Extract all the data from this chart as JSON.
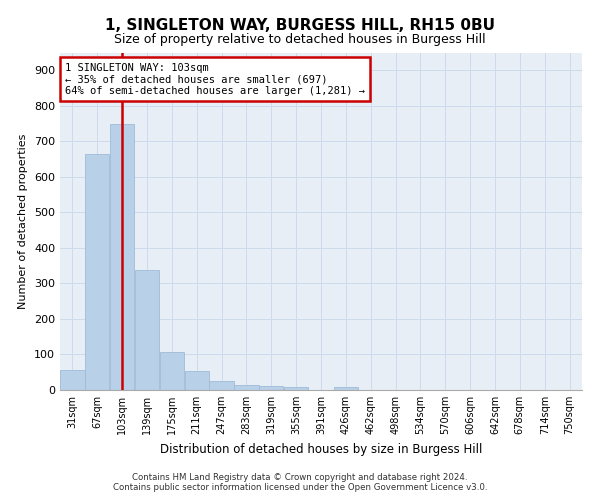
{
  "title_line1": "1, SINGLETON WAY, BURGESS HILL, RH15 0BU",
  "title_line2": "Size of property relative to detached houses in Burgess Hill",
  "xlabel": "Distribution of detached houses by size in Burgess Hill",
  "ylabel": "Number of detached properties",
  "footnote1": "Contains HM Land Registry data © Crown copyright and database right 2024.",
  "footnote2": "Contains public sector information licensed under the Open Government Licence v3.0.",
  "annotation_line1": "1 SINGLETON WAY: 103sqm",
  "annotation_line2": "← 35% of detached houses are smaller (697)",
  "annotation_line3": "64% of semi-detached houses are larger (1,281) →",
  "property_line_x": 2,
  "bar_labels": [
    "31sqm",
    "67sqm",
    "103sqm",
    "139sqm",
    "175sqm",
    "211sqm",
    "247sqm",
    "283sqm",
    "319sqm",
    "355sqm",
    "391sqm",
    "426sqm",
    "462sqm",
    "498sqm",
    "534sqm",
    "570sqm",
    "606sqm",
    "642sqm",
    "678sqm",
    "714sqm",
    "750sqm"
  ],
  "bar_heights": [
    55,
    665,
    750,
    337,
    107,
    53,
    26,
    14,
    12,
    9,
    0,
    9,
    0,
    0,
    0,
    0,
    0,
    0,
    0,
    0,
    0
  ],
  "bar_color": "#b8d0e8",
  "bar_edge_color": "#a0bcd8",
  "vline_color": "#cc0000",
  "annotation_box_color": "#cc0000",
  "grid_color": "#ccdaec",
  "background_color": "#e8eef6",
  "ylim": [
    0,
    950
  ],
  "yticks": [
    0,
    100,
    200,
    300,
    400,
    500,
    600,
    700,
    800,
    900
  ]
}
